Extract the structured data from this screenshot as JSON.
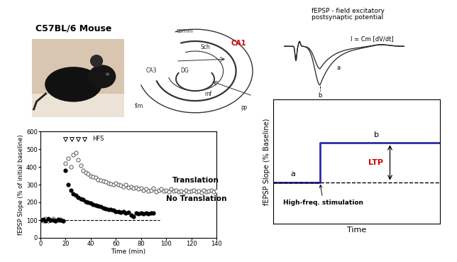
{
  "chart_data": [
    {
      "type": "scatter",
      "xlabel": "Time (min)",
      "ylabel": "fEPSP Slope (% of initial baseline)",
      "xlim": [
        0,
        140
      ],
      "xticks": [
        0,
        20,
        40,
        60,
        80,
        100,
        120,
        140
      ],
      "ylim": [
        0,
        600
      ],
      "yticks": [
        0,
        100,
        200,
        300,
        400,
        500,
        600
      ],
      "annotations": [
        {
          "text": "HFS"
        }
      ],
      "stimuli_x": [
        20,
        25,
        30,
        35
      ],
      "series": [
        {
          "name": "Translation",
          "marker": "open circle",
          "color": "#555555",
          "x": [
            0,
            2,
            4,
            6,
            8,
            10,
            12,
            14,
            16,
            18,
            20,
            22,
            24,
            26,
            28,
            30,
            32,
            34,
            36,
            38,
            40,
            42,
            44,
            46,
            48,
            50,
            52,
            54,
            56,
            58,
            60,
            62,
            64,
            66,
            68,
            70,
            72,
            74,
            76,
            78,
            80,
            82,
            84,
            86,
            88,
            90,
            92,
            94,
            96,
            98,
            100,
            102,
            104,
            106,
            108,
            110,
            112,
            114,
            116,
            118,
            120,
            122,
            124,
            126,
            128,
            130,
            132,
            134,
            136,
            138,
            140
          ],
          "values": [
            105,
            98,
            110,
            95,
            102,
            108,
            97,
            100,
            104,
            96,
            420,
            450,
            400,
            470,
            480,
            440,
            410,
            380,
            370,
            360,
            350,
            345,
            340,
            330,
            325,
            320,
            315,
            310,
            305,
            300,
            310,
            300,
            295,
            290,
            300,
            285,
            290,
            280,
            285,
            275,
            280,
            270,
            275,
            265,
            270,
            280,
            260,
            270,
            275,
            265,
            270,
            260,
            275,
            265,
            270,
            260,
            265,
            255,
            270,
            260,
            265,
            270,
            260,
            265,
            255,
            270,
            260,
            265,
            270,
            260,
            265
          ]
        },
        {
          "name": "No Translation",
          "marker": "filled circle",
          "color": "#000000",
          "x": [
            0,
            2,
            4,
            6,
            8,
            10,
            12,
            14,
            16,
            18,
            20,
            22,
            24,
            26,
            28,
            30,
            32,
            34,
            36,
            38,
            40,
            42,
            44,
            46,
            48,
            50,
            52,
            54,
            56,
            58,
            60,
            62,
            64,
            66,
            68,
            70,
            72,
            74,
            76,
            78,
            80,
            82,
            84,
            86,
            88,
            90
          ],
          "values": [
            100,
            104,
            95,
            108,
            99,
            102,
            97,
            106,
            101,
            98,
            380,
            300,
            270,
            250,
            240,
            230,
            220,
            215,
            205,
            200,
            195,
            190,
            185,
            180,
            175,
            170,
            165,
            160,
            160,
            155,
            150,
            150,
            145,
            150,
            140,
            145,
            130,
            120,
            140,
            135,
            140,
            135,
            140,
            135,
            140,
            140
          ]
        },
        {
          "type": "line",
          "line_style": "dashed",
          "color": "#000000",
          "x": [
            0,
            95
          ],
          "values": [
            100,
            100
          ]
        }
      ]
    },
    {
      "type": "line",
      "xlabel": "Time",
      "ylabel": "fEPSP Slope (% Baseline)",
      "tick_labels": false,
      "xlim": [
        0,
        10
      ],
      "xticks": [],
      "ylim": [
        0,
        300
      ],
      "yticks": [],
      "annotations": [
        {
          "text": "a"
        },
        {
          "text": "b"
        },
        {
          "text": "LTP",
          "color": "#cc0000"
        },
        {
          "text": "High-freq. stimulation"
        }
      ],
      "series": [
        {
          "line_style": "solid",
          "color": "#2b2ba8",
          "x": [
            0,
            2.8,
            2.8,
            10
          ],
          "values": [
            100,
            100,
            195,
            195
          ]
        },
        {
          "line_style": "dashed",
          "color": "#000000",
          "x": [
            0,
            10
          ],
          "values": [
            100,
            100
          ]
        }
      ]
    }
  ],
  "slide": {
    "title": "C57BL/6 Mouse",
    "hippocampus_labels": [
      "comm",
      "Sch",
      "CA1",
      "CA3",
      "DG",
      "mf",
      "fim",
      "PP"
    ],
    "hippocampus_highlight": "CA1",
    "trace_title": "fEPSP - field excitatory\npostsynaptic potential",
    "trace_labels": [
      "I = Cm [dV/dt]",
      "a",
      "b"
    ]
  }
}
